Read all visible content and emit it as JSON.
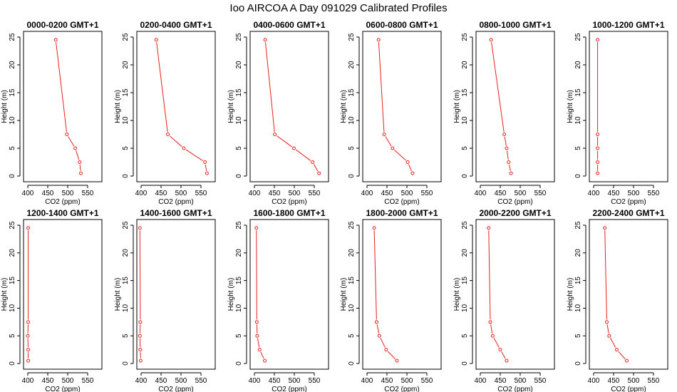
{
  "title": "Ioo AIRCOA A  Day 091029  Calibrated Profiles",
  "colors": {
    "series": "#e8211b",
    "axis": "#000000",
    "background": "#ffffff"
  },
  "chart_data": [
    {
      "type": "line",
      "title": "0000-0200 GMT+1",
      "xlabel": "CO2 (ppm)",
      "ylabel": "Height (m)",
      "xlim": [
        400,
        575
      ],
      "ylim": [
        0,
        25
      ],
      "xticks": [
        400,
        450,
        500,
        550
      ],
      "yticks": [
        0,
        5,
        10,
        15,
        20,
        25
      ],
      "points": [
        {
          "x": 470,
          "y": 24.5
        },
        {
          "x": 498,
          "y": 7.5
        },
        {
          "x": 519,
          "y": 5
        },
        {
          "x": 530,
          "y": 2.5
        },
        {
          "x": 533,
          "y": 0.5
        }
      ]
    },
    {
      "type": "line",
      "title": "0200-0400 GMT+1",
      "xlabel": "CO2 (ppm)",
      "ylabel": "Height (m)",
      "xlim": [
        400,
        575
      ],
      "ylim": [
        0,
        25
      ],
      "xticks": [
        400,
        450,
        500,
        550
      ],
      "yticks": [
        0,
        5,
        10,
        15,
        20,
        25
      ],
      "points": [
        {
          "x": 438,
          "y": 24.5
        },
        {
          "x": 467,
          "y": 7.5
        },
        {
          "x": 507,
          "y": 5
        },
        {
          "x": 560,
          "y": 2.5
        },
        {
          "x": 565,
          "y": 0.5
        }
      ]
    },
    {
      "type": "line",
      "title": "0400-0600 GMT+1",
      "xlabel": "CO2 (ppm)",
      "ylabel": "Height (m)",
      "xlim": [
        400,
        575
      ],
      "ylim": [
        0,
        25
      ],
      "xticks": [
        400,
        450,
        500,
        550
      ],
      "yticks": [
        0,
        5,
        10,
        15,
        20,
        25
      ],
      "points": [
        {
          "x": 427,
          "y": 24.5
        },
        {
          "x": 451,
          "y": 7.5
        },
        {
          "x": 499,
          "y": 5
        },
        {
          "x": 546,
          "y": 2.5
        },
        {
          "x": 562,
          "y": 0.5
        }
      ]
    },
    {
      "type": "line",
      "title": "0600-0800 GMT+1",
      "xlabel": "CO2 (ppm)",
      "ylabel": "Height (m)",
      "xlim": [
        400,
        575
      ],
      "ylim": [
        0,
        25
      ],
      "xticks": [
        400,
        450,
        500,
        550
      ],
      "yticks": [
        0,
        5,
        10,
        15,
        20,
        25
      ],
      "points": [
        {
          "x": 429,
          "y": 24.5
        },
        {
          "x": 443,
          "y": 7.5
        },
        {
          "x": 464,
          "y": 5
        },
        {
          "x": 502,
          "y": 2.5
        },
        {
          "x": 514,
          "y": 0.5
        }
      ]
    },
    {
      "type": "line",
      "title": "0800-1000 GMT+1",
      "xlabel": "CO2 (ppm)",
      "ylabel": "Height (m)",
      "xlim": [
        400,
        575
      ],
      "ylim": [
        0,
        25
      ],
      "xticks": [
        400,
        450,
        500,
        550
      ],
      "yticks": [
        0,
        5,
        10,
        15,
        20,
        25
      ],
      "points": [
        {
          "x": 427,
          "y": 24.5
        },
        {
          "x": 460,
          "y": 7.5
        },
        {
          "x": 466,
          "y": 5
        },
        {
          "x": 471,
          "y": 2.5
        },
        {
          "x": 477,
          "y": 0.5
        }
      ]
    },
    {
      "type": "line",
      "title": "1000-1200 GMT+1",
      "xlabel": "CO2 (ppm)",
      "ylabel": "Height (m)",
      "xlim": [
        400,
        575
      ],
      "ylim": [
        0,
        25
      ],
      "xticks": [
        400,
        450,
        500,
        550
      ],
      "yticks": [
        0,
        5,
        10,
        15,
        20,
        25
      ],
      "points": [
        {
          "x": 410,
          "y": 24.5
        },
        {
          "x": 410,
          "y": 7.5
        },
        {
          "x": 410,
          "y": 5
        },
        {
          "x": 410,
          "y": 2.5
        },
        {
          "x": 410,
          "y": 0.5
        }
      ]
    },
    {
      "type": "line",
      "title": "1200-1400 GMT+1",
      "xlabel": "CO2 (ppm)",
      "ylabel": "Height (m)",
      "xlim": [
        400,
        575
      ],
      "ylim": [
        0,
        25
      ],
      "xticks": [
        400,
        450,
        500,
        550
      ],
      "yticks": [
        0,
        5,
        10,
        15,
        20,
        25
      ],
      "points": [
        {
          "x": 401,
          "y": 24.5
        },
        {
          "x": 401,
          "y": 7.5
        },
        {
          "x": 400,
          "y": 5
        },
        {
          "x": 401,
          "y": 2.5
        },
        {
          "x": 401,
          "y": 0.5
        }
      ]
    },
    {
      "type": "line",
      "title": "1400-1600 GMT+1",
      "xlabel": "CO2 (ppm)",
      "ylabel": "Height (m)",
      "xlim": [
        400,
        575
      ],
      "ylim": [
        0,
        25
      ],
      "xticks": [
        400,
        450,
        500,
        550
      ],
      "yticks": [
        0,
        5,
        10,
        15,
        20,
        25
      ],
      "points": [
        {
          "x": 397,
          "y": 24.5
        },
        {
          "x": 398,
          "y": 7.5
        },
        {
          "x": 397,
          "y": 5
        },
        {
          "x": 398,
          "y": 2.5
        },
        {
          "x": 399,
          "y": 0.5
        }
      ]
    },
    {
      "type": "line",
      "title": "1600-1800 GMT+1",
      "xlabel": "CO2 (ppm)",
      "ylabel": "Height (m)",
      "xlim": [
        400,
        575
      ],
      "ylim": [
        0,
        25
      ],
      "xticks": [
        400,
        450,
        500,
        550
      ],
      "yticks": [
        0,
        5,
        10,
        15,
        20,
        25
      ],
      "points": [
        {
          "x": 405,
          "y": 24.5
        },
        {
          "x": 406,
          "y": 7.5
        },
        {
          "x": 407,
          "y": 5
        },
        {
          "x": 413,
          "y": 2.5
        },
        {
          "x": 426,
          "y": 0.5
        }
      ]
    },
    {
      "type": "line",
      "title": "1800-2000 GMT+1",
      "xlabel": "CO2 (ppm)",
      "ylabel": "Height (m)",
      "xlim": [
        400,
        575
      ],
      "ylim": [
        0,
        25
      ],
      "xticks": [
        400,
        450,
        500,
        550
      ],
      "yticks": [
        0,
        5,
        10,
        15,
        20,
        25
      ],
      "points": [
        {
          "x": 418,
          "y": 24.5
        },
        {
          "x": 424,
          "y": 7.5
        },
        {
          "x": 431,
          "y": 5
        },
        {
          "x": 448,
          "y": 2.5
        },
        {
          "x": 475,
          "y": 0.5
        }
      ]
    },
    {
      "type": "line",
      "title": "2000-2200 GMT+1",
      "xlabel": "CO2 (ppm)",
      "ylabel": "Height (m)",
      "xlim": [
        400,
        575
      ],
      "ylim": [
        0,
        25
      ],
      "xticks": [
        400,
        450,
        500,
        550
      ],
      "yticks": [
        0,
        5,
        10,
        15,
        20,
        25
      ],
      "points": [
        {
          "x": 421,
          "y": 24.5
        },
        {
          "x": 425,
          "y": 7.5
        },
        {
          "x": 431,
          "y": 5
        },
        {
          "x": 450,
          "y": 2.5
        },
        {
          "x": 466,
          "y": 0.5
        }
      ]
    },
    {
      "type": "line",
      "title": "2200-2400 GMT+1",
      "xlabel": "CO2 (ppm)",
      "ylabel": "Height (m)",
      "xlim": [
        400,
        575
      ],
      "ylim": [
        0,
        25
      ],
      "xticks": [
        400,
        450,
        500,
        550
      ],
      "yticks": [
        0,
        5,
        10,
        15,
        20,
        25
      ],
      "points": [
        {
          "x": 428,
          "y": 24.5
        },
        {
          "x": 433,
          "y": 7.5
        },
        {
          "x": 439,
          "y": 5
        },
        {
          "x": 458,
          "y": 2.5
        },
        {
          "x": 483,
          "y": 0.5
        }
      ]
    }
  ]
}
